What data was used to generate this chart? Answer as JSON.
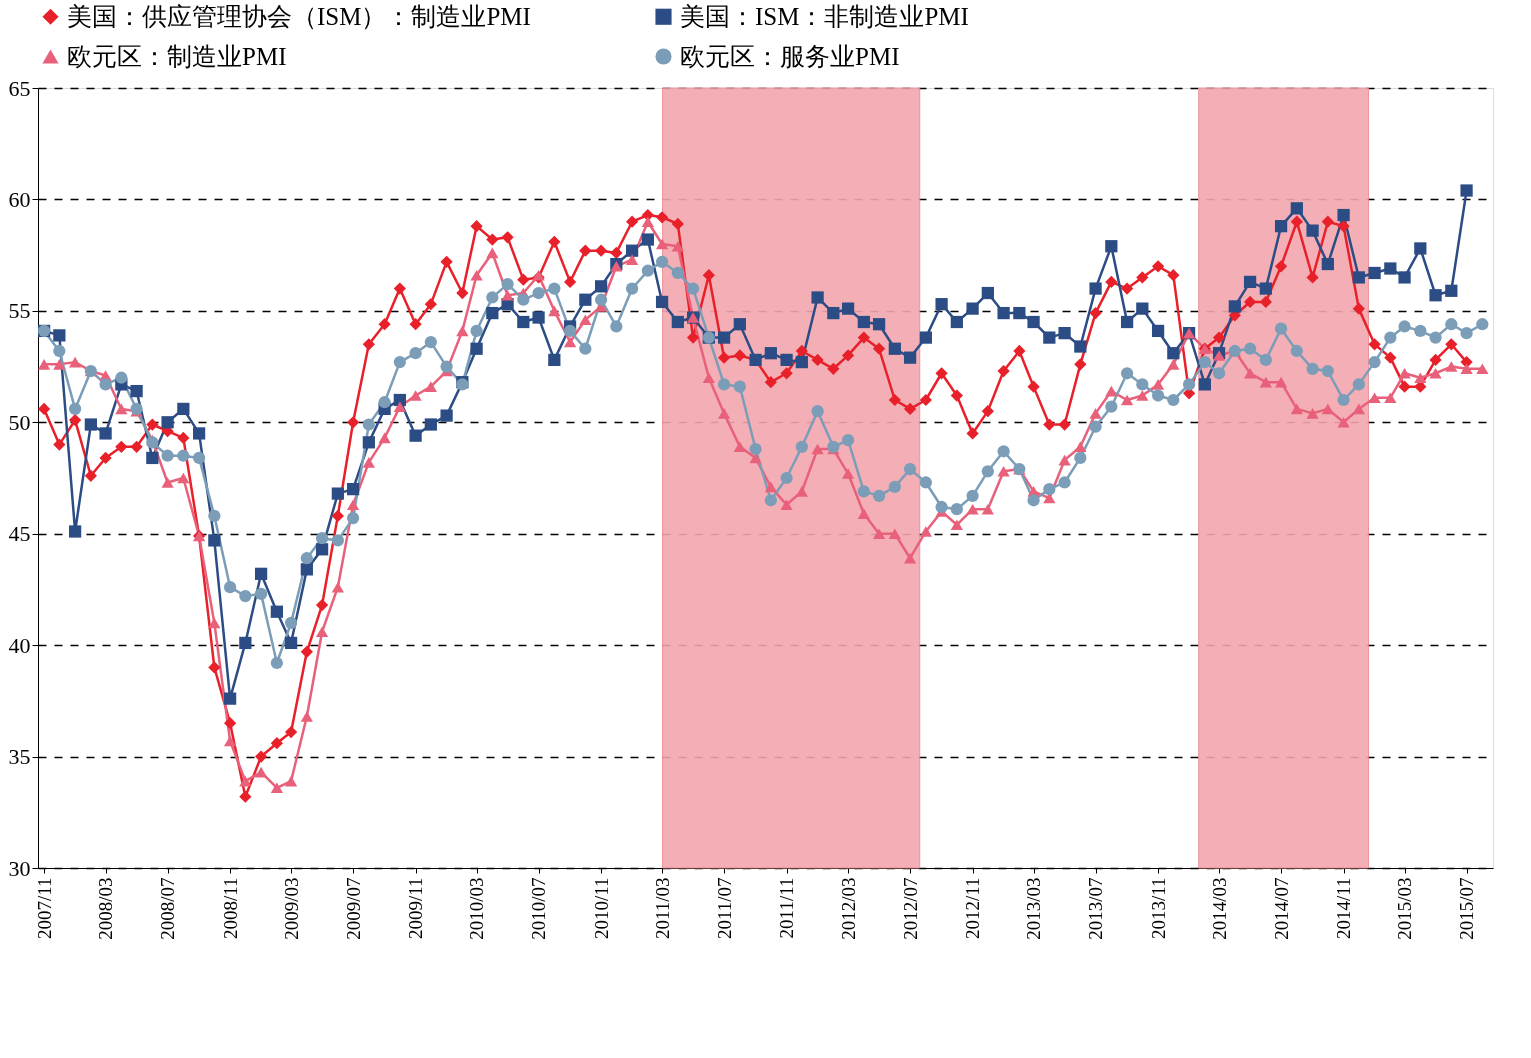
{
  "chart_data": {
    "type": "line",
    "x": [
      "2007-11",
      "2007-12",
      "2008-01",
      "2008-02",
      "2008-03",
      "2008-04",
      "2008-05",
      "2008-06",
      "2008-07",
      "2008-08",
      "2008-09",
      "2008-10",
      "2008-11",
      "2008-12",
      "2009-01",
      "2009-02",
      "2009-03",
      "2009-04",
      "2009-05",
      "2009-06",
      "2009-07",
      "2009-08",
      "2009-09",
      "2009-10",
      "2009-11",
      "2009-12",
      "2010-01",
      "2010-02",
      "2010-03",
      "2010-04",
      "2010-05",
      "2010-06",
      "2010-07",
      "2010-08",
      "2010-09",
      "2010-10",
      "2010-11",
      "2010-12",
      "2011-01",
      "2011-02",
      "2011-03",
      "2011-04",
      "2011-05",
      "2011-06",
      "2011-07",
      "2011-08",
      "2011-09",
      "2011-10",
      "2011-11",
      "2011-12",
      "2012-01",
      "2012-02",
      "2012-03",
      "2012-04",
      "2012-05",
      "2012-06",
      "2012-07",
      "2012-08",
      "2012-09",
      "2012-10",
      "2012-11",
      "2012-12",
      "2013-01",
      "2013-02",
      "2013-03",
      "2013-04",
      "2013-05",
      "2013-06",
      "2013-07",
      "2013-08",
      "2013-09",
      "2013-10",
      "2013-11",
      "2013-12",
      "2014-01",
      "2014-02",
      "2014-03",
      "2014-04",
      "2014-05",
      "2014-06",
      "2014-07",
      "2014-08",
      "2014-09",
      "2014-10",
      "2014-11",
      "2014-12",
      "2015-01",
      "2015-02",
      "2015-03",
      "2015-04",
      "2015-05",
      "2015-06",
      "2015-07",
      "2015-08"
    ],
    "series": [
      {
        "name": "美国：供应管理协会（ISM）：制造业PMI",
        "color": "#e8202a",
        "marker": "diamond",
        "values": [
          50.6,
          49.0,
          50.1,
          47.6,
          48.4,
          48.9,
          48.9,
          49.9,
          49.6,
          49.3,
          44.9,
          39.0,
          36.5,
          33.2,
          35.0,
          35.6,
          36.1,
          39.7,
          41.8,
          45.8,
          50.0,
          53.5,
          54.4,
          56.0,
          54.4,
          55.3,
          57.2,
          55.8,
          58.8,
          58.2,
          58.3,
          56.4,
          56.5,
          58.1,
          56.3,
          57.7,
          57.7,
          57.6,
          59.0,
          59.3,
          59.2,
          58.9,
          53.8,
          56.6,
          52.9,
          53.0,
          52.8,
          51.8,
          52.2,
          53.2,
          52.8,
          52.4,
          53.0,
          53.8,
          53.3,
          51.0,
          50.6,
          51.0,
          52.2,
          51.2,
          49.5,
          50.5,
          52.3,
          53.2,
          51.6,
          49.9,
          49.9,
          52.6,
          54.9,
          56.3,
          56.0,
          56.5,
          57.0,
          56.6,
          51.3,
          53.3,
          53.8,
          54.8,
          55.4,
          55.4,
          57.0,
          59.0,
          56.5,
          59.0,
          58.8,
          55.1,
          53.5,
          52.9,
          51.6,
          51.6,
          52.8,
          53.5,
          52.7,
          null
        ]
      },
      {
        "name": "美国：ISM：非制造业PMI",
        "color": "#2b4c84",
        "marker": "square",
        "values": [
          54.1,
          53.9,
          45.1,
          49.9,
          49.5,
          51.7,
          51.4,
          48.4,
          50.0,
          50.6,
          49.5,
          44.7,
          37.6,
          40.1,
          43.2,
          41.5,
          40.1,
          43.4,
          44.3,
          46.8,
          47.0,
          49.1,
          50.6,
          51.0,
          49.4,
          49.9,
          50.3,
          51.8,
          53.3,
          54.9,
          55.3,
          54.5,
          54.7,
          52.8,
          54.3,
          55.5,
          56.1,
          57.1,
          57.7,
          58.2,
          55.4,
          54.5,
          54.7,
          53.8,
          53.8,
          54.4,
          52.8,
          53.1,
          52.8,
          52.7,
          55.6,
          54.9,
          55.1,
          54.5,
          54.4,
          53.3,
          52.9,
          53.8,
          55.3,
          54.5,
          55.1,
          55.8,
          54.9,
          54.9,
          54.5,
          53.8,
          54.0,
          53.4,
          56.0,
          57.9,
          54.5,
          55.1,
          54.1,
          53.1,
          54.0,
          51.7,
          53.1,
          55.2,
          56.3,
          56.0,
          58.8,
          59.6,
          58.6,
          57.1,
          59.3,
          56.5,
          56.7,
          56.9,
          56.5,
          57.8,
          55.7,
          55.9,
          60.4,
          null
        ]
      },
      {
        "name": "欧元区：制造业PMI",
        "color": "#e8607a",
        "marker": "triangle",
        "values": [
          52.6,
          52.6,
          52.7,
          52.3,
          52.1,
          50.6,
          50.5,
          49.2,
          47.3,
          47.5,
          44.9,
          41.0,
          35.7,
          33.9,
          34.3,
          33.6,
          33.9,
          36.8,
          40.6,
          42.6,
          46.3,
          48.2,
          49.3,
          50.7,
          51.2,
          51.6,
          52.3,
          54.1,
          56.6,
          57.6,
          55.7,
          55.8,
          56.6,
          55.0,
          53.6,
          54.6,
          55.2,
          57.0,
          57.3,
          59.0,
          58.0,
          57.9,
          54.7,
          52.0,
          50.4,
          48.9,
          48.4,
          47.1,
          46.3,
          46.9,
          48.8,
          48.8,
          47.7,
          45.9,
          45.0,
          45.0,
          43.9,
          45.1,
          46.0,
          45.4,
          46.1,
          46.1,
          47.8,
          47.9,
          46.9,
          46.6,
          48.3,
          48.9,
          50.4,
          51.4,
          51.0,
          51.2,
          51.7,
          52.6,
          54.0,
          53.3,
          53.0,
          53.2,
          52.2,
          51.8,
          51.8,
          50.6,
          50.4,
          50.6,
          50.0,
          50.6,
          51.1,
          51.1,
          52.2,
          52.0,
          52.2,
          52.5,
          52.4,
          52.4
        ]
      },
      {
        "name": "欧元区：服务业PMI",
        "color": "#7b9db8",
        "marker": "circle",
        "values": [
          54.1,
          53.2,
          50.6,
          52.3,
          51.7,
          52.0,
          50.6,
          49.1,
          48.5,
          48.5,
          48.4,
          45.8,
          42.6,
          42.2,
          42.3,
          39.2,
          41.0,
          43.9,
          44.8,
          44.7,
          45.7,
          49.9,
          50.9,
          52.7,
          53.1,
          53.6,
          52.5,
          51.7,
          54.1,
          55.6,
          56.2,
          55.5,
          55.8,
          56.0,
          54.1,
          53.3,
          55.5,
          54.3,
          56.0,
          56.8,
          57.2,
          56.7,
          56.0,
          53.8,
          51.7,
          51.6,
          48.8,
          46.5,
          47.5,
          48.9,
          50.5,
          48.9,
          49.2,
          46.9,
          46.7,
          47.1,
          47.9,
          47.3,
          46.2,
          46.1,
          46.7,
          47.8,
          48.7,
          47.9,
          46.5,
          47.0,
          47.3,
          48.4,
          49.8,
          50.7,
          52.2,
          51.7,
          51.2,
          51.0,
          51.7,
          52.7,
          52.2,
          53.2,
          53.3,
          52.8,
          54.2,
          53.2,
          52.4,
          52.3,
          51.0,
          51.7,
          52.7,
          53.8,
          54.3,
          54.1,
          53.8,
          54.4,
          54.0,
          54.4
        ]
      }
    ],
    "xlim": [
      "2007-10-20",
      "2015-08-22"
    ],
    "xticks": [
      {
        "value": "2007-11",
        "label": "2007/11"
      },
      {
        "value": "2008-03",
        "label": "2008/03"
      },
      {
        "value": "2008-07",
        "label": "2008/07"
      },
      {
        "value": "2008-11",
        "label": "2008/11"
      },
      {
        "value": "2009-03",
        "label": "2009/03"
      },
      {
        "value": "2009-07",
        "label": "2009/07"
      },
      {
        "value": "2009-11",
        "label": "2009/11"
      },
      {
        "value": "2010-03",
        "label": "2010/03"
      },
      {
        "value": "2010-07",
        "label": "2010/07"
      },
      {
        "value": "2010-11",
        "label": "2010/11"
      },
      {
        "value": "2011-03",
        "label": "2011/03"
      },
      {
        "value": "2011-07",
        "label": "2011/07"
      },
      {
        "value": "2011-11",
        "label": "2011/11"
      },
      {
        "value": "2012-03",
        "label": "2012/03"
      },
      {
        "value": "2012-07",
        "label": "2012/07"
      },
      {
        "value": "2012-11",
        "label": "2012/11"
      },
      {
        "value": "2013-03",
        "label": "2013/03"
      },
      {
        "value": "2013-07",
        "label": "2013/07"
      },
      {
        "value": "2013-11",
        "label": "2013/11"
      },
      {
        "value": "2014-03",
        "label": "2014/03"
      },
      {
        "value": "2014-07",
        "label": "2014/07"
      },
      {
        "value": "2014-11",
        "label": "2014/11"
      },
      {
        "value": "2015-03",
        "label": "2015/03"
      },
      {
        "value": "2015-07",
        "label": "2015/07"
      }
    ],
    "ylim": [
      30,
      65
    ],
    "yticks": [
      30,
      35,
      40,
      45,
      50,
      55,
      60,
      65
    ],
    "grid": "y",
    "legend": "top",
    "line_style": "solid",
    "bands": [
      {
        "axis": "x",
        "from": "2011-03-02",
        "to": "2012-07-20",
        "color": "#f2a7ae"
      },
      {
        "axis": "x",
        "from": "2014-01-20",
        "to": "2014-12-20",
        "color": "#f2a7ae"
      }
    ]
  }
}
